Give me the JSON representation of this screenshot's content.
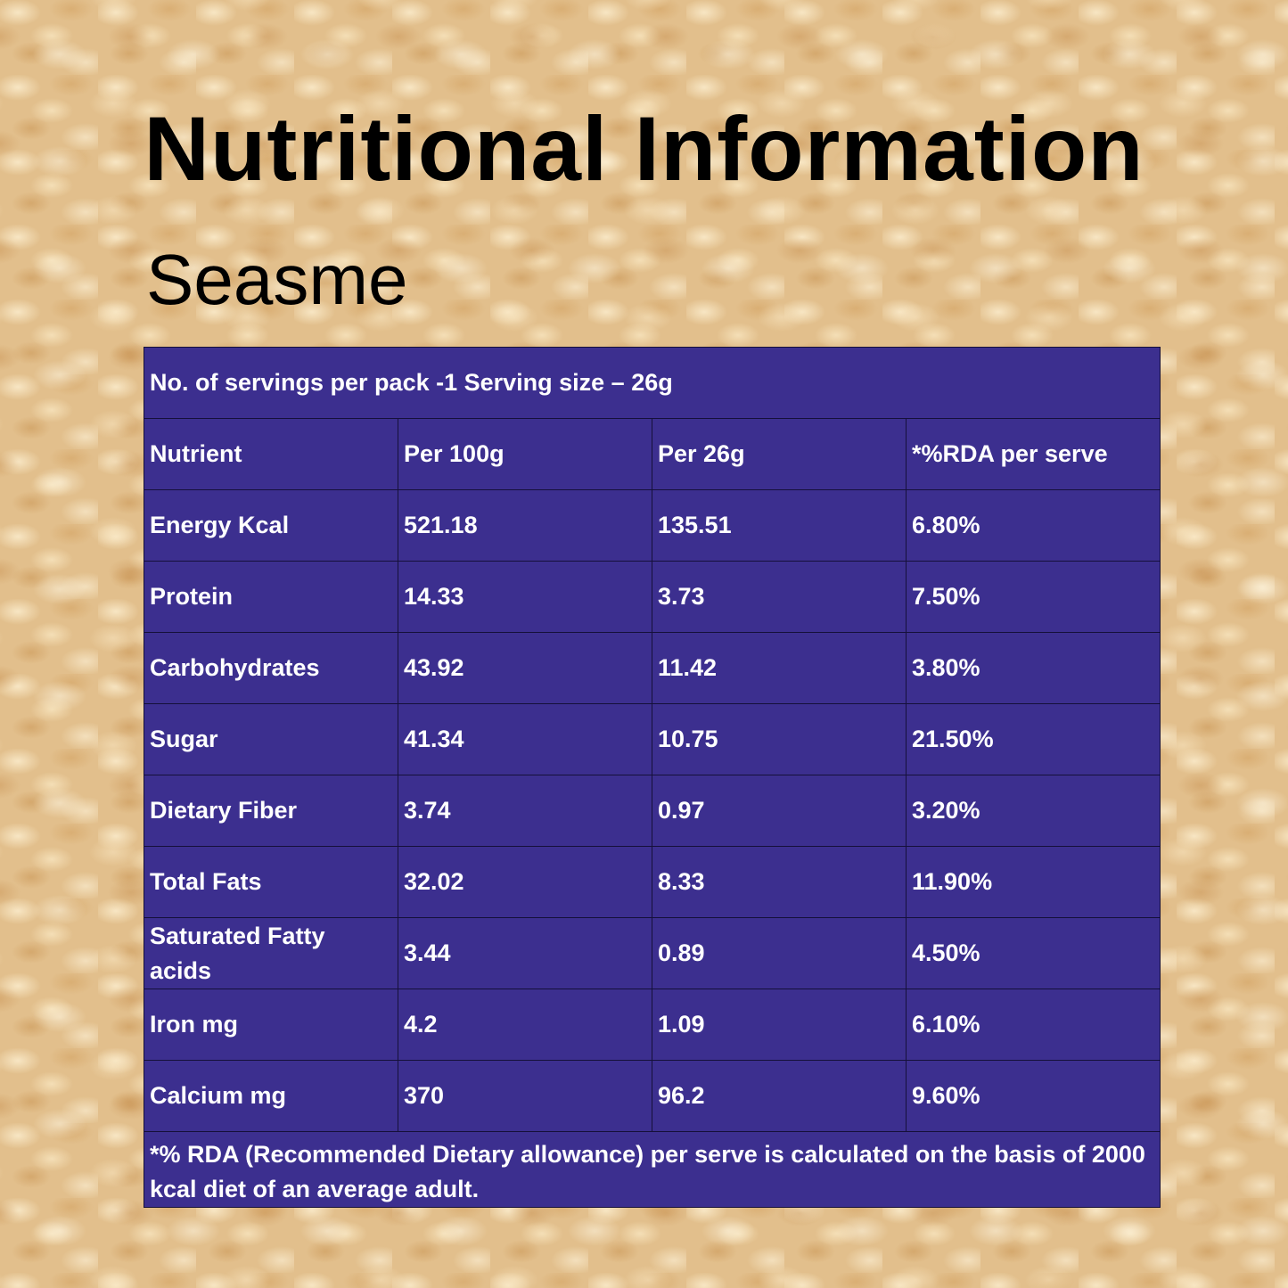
{
  "title": "Nutritional Information",
  "subtitle": "Seasme",
  "table": {
    "serving_info": "No. of servings per pack -1 Serving size – 26g",
    "headers": [
      "Nutrient",
      "Per 100g",
      "Per 26g",
      "*%RDA per serve"
    ],
    "rows": [
      [
        "Energy Kcal",
        "521.18",
        "135.51",
        "6.80%"
      ],
      [
        "Protein",
        "14.33",
        "3.73",
        "7.50%"
      ],
      [
        "Carbohydrates",
        "43.92",
        "11.42",
        "3.80%"
      ],
      [
        "Sugar",
        "41.34",
        "10.75",
        "21.50%"
      ],
      [
        "Dietary Fiber",
        "3.74",
        "0.97",
        "3.20%"
      ],
      [
        "Total Fats",
        "32.02",
        "8.33",
        "11.90%"
      ],
      [
        "Saturated Fatty acids",
        "3.44",
        "0.89",
        "4.50%"
      ],
      [
        "Iron mg",
        "4.2",
        "1.09",
        "6.10%"
      ],
      [
        "Calcium mg",
        "370",
        "96.2",
        "9.60%"
      ]
    ],
    "footnote": "*% RDA (Recommended Dietary allowance) per serve is calculated on the basis of 2000 kcal diet of an average adult."
  },
  "colors": {
    "table_background": "#3c2f8f",
    "table_text": "#ffffff",
    "table_border": "#15103a",
    "title_text": "#000000"
  }
}
